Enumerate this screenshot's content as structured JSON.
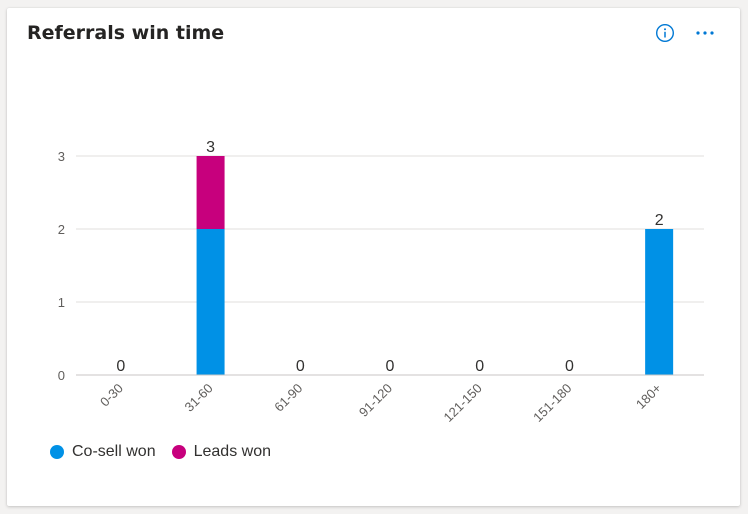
{
  "card": {
    "title": "Referrals win time",
    "info_icon": "info-icon",
    "more_icon": "more-options-icon"
  },
  "chart_data": {
    "type": "bar",
    "stacked": true,
    "categories": [
      "0-30",
      "31-60",
      "61-90",
      "91-120",
      "121-150",
      "151-180",
      "180+"
    ],
    "series": [
      {
        "name": "Co-sell won",
        "color": "#0091e6",
        "values": [
          0,
          2,
          0,
          0,
          0,
          0,
          2
        ]
      },
      {
        "name": "Leads won",
        "color": "#c7007d",
        "values": [
          0,
          1,
          0,
          0,
          0,
          0,
          0
        ]
      }
    ],
    "totals": [
      0,
      3,
      0,
      0,
      0,
      0,
      2
    ],
    "y_ticks": [
      0,
      1,
      2,
      3
    ],
    "ylim": [
      0,
      3
    ],
    "grid": true,
    "legend": "bottom-left",
    "title": "Referrals win time"
  },
  "colors": {
    "axis_text": "#605e5c",
    "gridline": "#e1dfdd",
    "baseline": "#c8c6c4",
    "accent": "#0078d4"
  }
}
